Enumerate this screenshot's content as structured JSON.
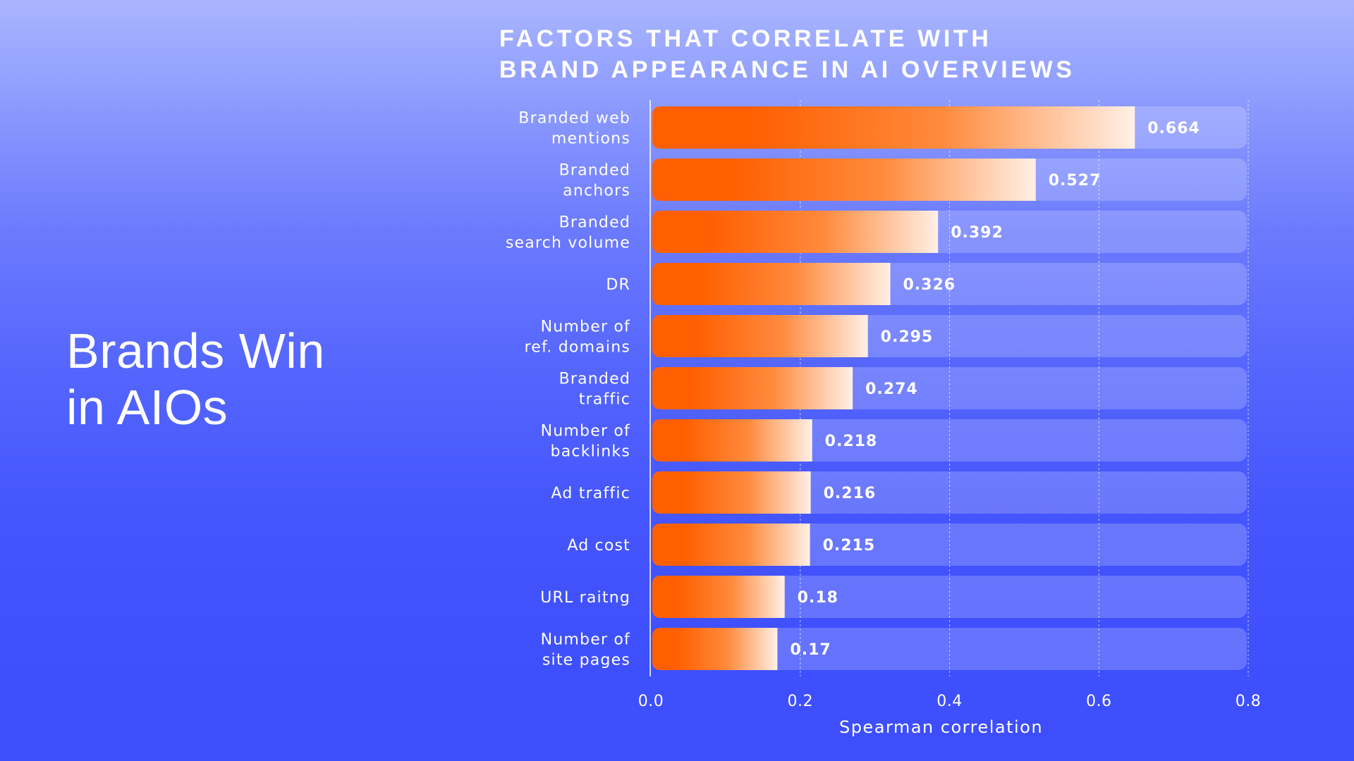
{
  "hero": {
    "line1": "Brands Win",
    "line2": "in AIOs"
  },
  "chart_data": {
    "type": "bar",
    "orientation": "horizontal",
    "title": "FACTORS THAT CORRELATE WITH BRAND APPEARANCE IN AI OVERVIEWS",
    "title_lines": [
      "FACTORS THAT CORRELATE WITH",
      "BRAND APPEARANCE IN AI OVERVIEWS"
    ],
    "categories": [
      [
        "Branded web",
        "mentions"
      ],
      [
        "Branded",
        "anchors"
      ],
      [
        "Branded",
        "search volume"
      ],
      [
        "DR"
      ],
      [
        "Number of",
        "ref. domains"
      ],
      [
        "Branded",
        "traffic"
      ],
      [
        "Number of",
        "backlinks"
      ],
      [
        "Ad traffic"
      ],
      [
        "Ad cost"
      ],
      [
        "URL raitng"
      ],
      [
        "Number of",
        "site pages"
      ]
    ],
    "values": [
      0.664,
      0.527,
      0.392,
      0.326,
      0.295,
      0.274,
      0.218,
      0.216,
      0.215,
      0.18,
      0.17
    ],
    "value_labels": [
      "0.664",
      "0.527",
      "0.392",
      "0.326",
      "0.295",
      "0.274",
      "0.218",
      "0.216",
      "0.215",
      "0.18",
      "0.17"
    ],
    "xlabel": "Spearman correlation",
    "ylabel": "",
    "xlim": [
      0.0,
      0.8
    ],
    "xticks": [
      0.0,
      0.2,
      0.4,
      0.6,
      0.8
    ],
    "xtick_labels": [
      "0.0",
      "0.2",
      "0.4",
      "0.6",
      "0.8"
    ],
    "grid": "vertical dashed",
    "legend": "none",
    "colors": {
      "bar_start": "#ff5f00",
      "bar_mid": "#ff8a3d",
      "bar_end": "#fff0e6",
      "track": "#ffffff",
      "background_top": "#a9b5fe",
      "background_bottom": "#3d4efd"
    }
  }
}
